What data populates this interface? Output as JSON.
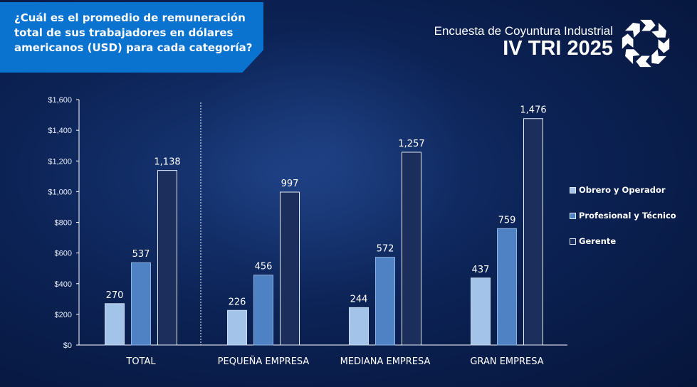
{
  "header": {
    "question": "¿Cuál es el promedio de remuneración total de sus trabajadores en dólares americanos (USD) para cada categoría?",
    "survey_title": "Encuesta de Coyuntura Industrial",
    "survey_period": "IV TRI 2025"
  },
  "colors": {
    "question_box": "#0a73d0",
    "obrero": "#a3c4e8",
    "profesional": "#4f82c4",
    "gerente": "#1c2f5c"
  },
  "logo": {
    "icon": "circular-arrows-logo-icon"
  },
  "chart_data": {
    "type": "bar",
    "title": "",
    "xlabel": "",
    "ylabel": "",
    "ylim": [
      0,
      1600
    ],
    "yticks": [
      0,
      200,
      400,
      600,
      800,
      1000,
      1200,
      1400,
      1600
    ],
    "ytick_labels": [
      "$0",
      "$200",
      "$400",
      "$600",
      "$800",
      "$1,000",
      "$1,200",
      "$1,400",
      "$1,600"
    ],
    "categories": [
      "TOTAL",
      "PEQUEÑA EMPRESA",
      "MEDIANA EMPRESA",
      "GRAN EMPRESA"
    ],
    "series": [
      {
        "name": "Obrero y Operador",
        "values": [
          270,
          226,
          244,
          437
        ],
        "labels": [
          "270",
          "226",
          "244",
          "437"
        ]
      },
      {
        "name": "Profesional y Técnico",
        "values": [
          537,
          456,
          572,
          759
        ],
        "labels": [
          "537",
          "456",
          "572",
          "759"
        ]
      },
      {
        "name": "Gerente",
        "values": [
          1138,
          997,
          1257,
          1476
        ],
        "labels": [
          "1,138",
          "997",
          "1,257",
          "1,476"
        ]
      }
    ],
    "legend_position": "right",
    "grid": false,
    "separator_after_category": "TOTAL"
  }
}
